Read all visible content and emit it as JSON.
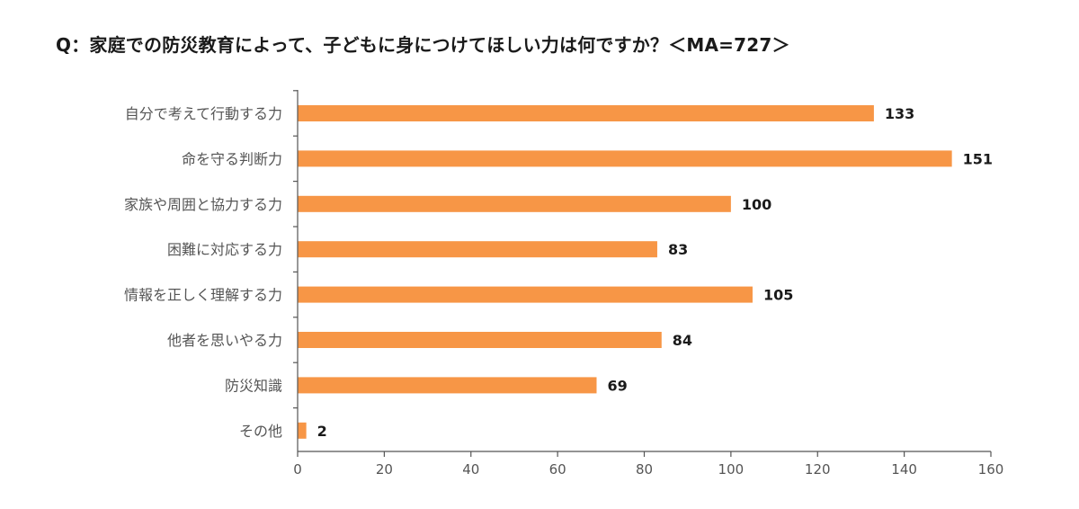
{
  "chart_data": {
    "type": "bar",
    "orientation": "horizontal",
    "title": "Q：家庭での防災教育によって、子どもに身につけてほしい力は何ですか？＜MA=727＞",
    "categories": [
      "自分で考えて行動する力",
      "命を守る判断力",
      "家族や周囲と協力する力",
      "困難に対応する力",
      "情報を正しく理解する力",
      "他者を思いやる力",
      "防災知識",
      "その他"
    ],
    "values": [
      133,
      151,
      100,
      83,
      105,
      84,
      69,
      2
    ],
    "xlim": [
      0,
      160
    ],
    "xticks": [
      0,
      20,
      40,
      60,
      80,
      100,
      120,
      140,
      160
    ],
    "bar_color": "#F79646",
    "grid": false,
    "legend": "none",
    "xlabel": "",
    "ylabel": ""
  }
}
